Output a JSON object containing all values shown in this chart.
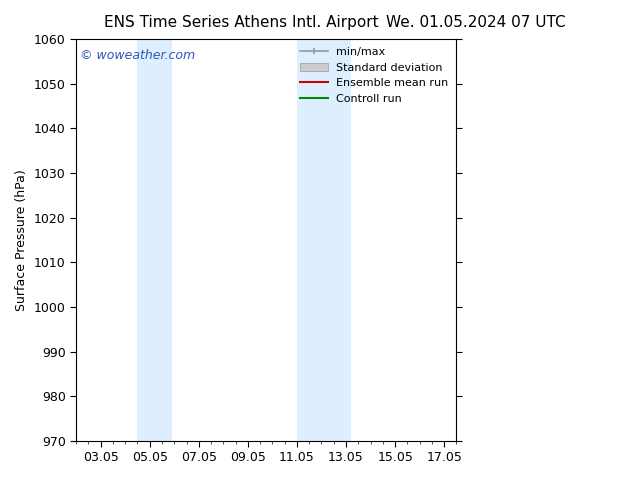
{
  "title_left": "ENS Time Series Athens Intl. Airport",
  "title_right": "We. 01.05.2024 07 UTC",
  "ylabel": "Surface Pressure (hPa)",
  "ylim": [
    970,
    1060
  ],
  "yticks": [
    970,
    980,
    990,
    1000,
    1010,
    1020,
    1030,
    1040,
    1050,
    1060
  ],
  "xlim": [
    2.0,
    17.5
  ],
  "xtick_labels": [
    "03.05",
    "05.05",
    "07.05",
    "09.05",
    "11.05",
    "13.05",
    "15.05",
    "17.05"
  ],
  "xtick_positions": [
    3,
    5,
    7,
    9,
    11,
    13,
    15,
    17
  ],
  "shaded_bands": [
    {
      "x_start": 4.5,
      "x_end": 5.9,
      "color": "#ddeeff"
    },
    {
      "x_start": 11.0,
      "x_end": 13.2,
      "color": "#ddeeff"
    }
  ],
  "watermark_text": "© woweather.com",
  "watermark_color": "#3355bb",
  "legend_entries": [
    {
      "label": "min/max",
      "type": "errorbar",
      "color": "#999999"
    },
    {
      "label": "Standard deviation",
      "type": "band",
      "color": "#cccccc"
    },
    {
      "label": "Ensemble mean run",
      "type": "line",
      "color": "#cc0000"
    },
    {
      "label": "Controll run",
      "type": "line",
      "color": "#008800"
    }
  ],
  "background_color": "#ffffff",
  "title_fontsize": 11,
  "tick_fontsize": 9,
  "ylabel_fontsize": 9
}
